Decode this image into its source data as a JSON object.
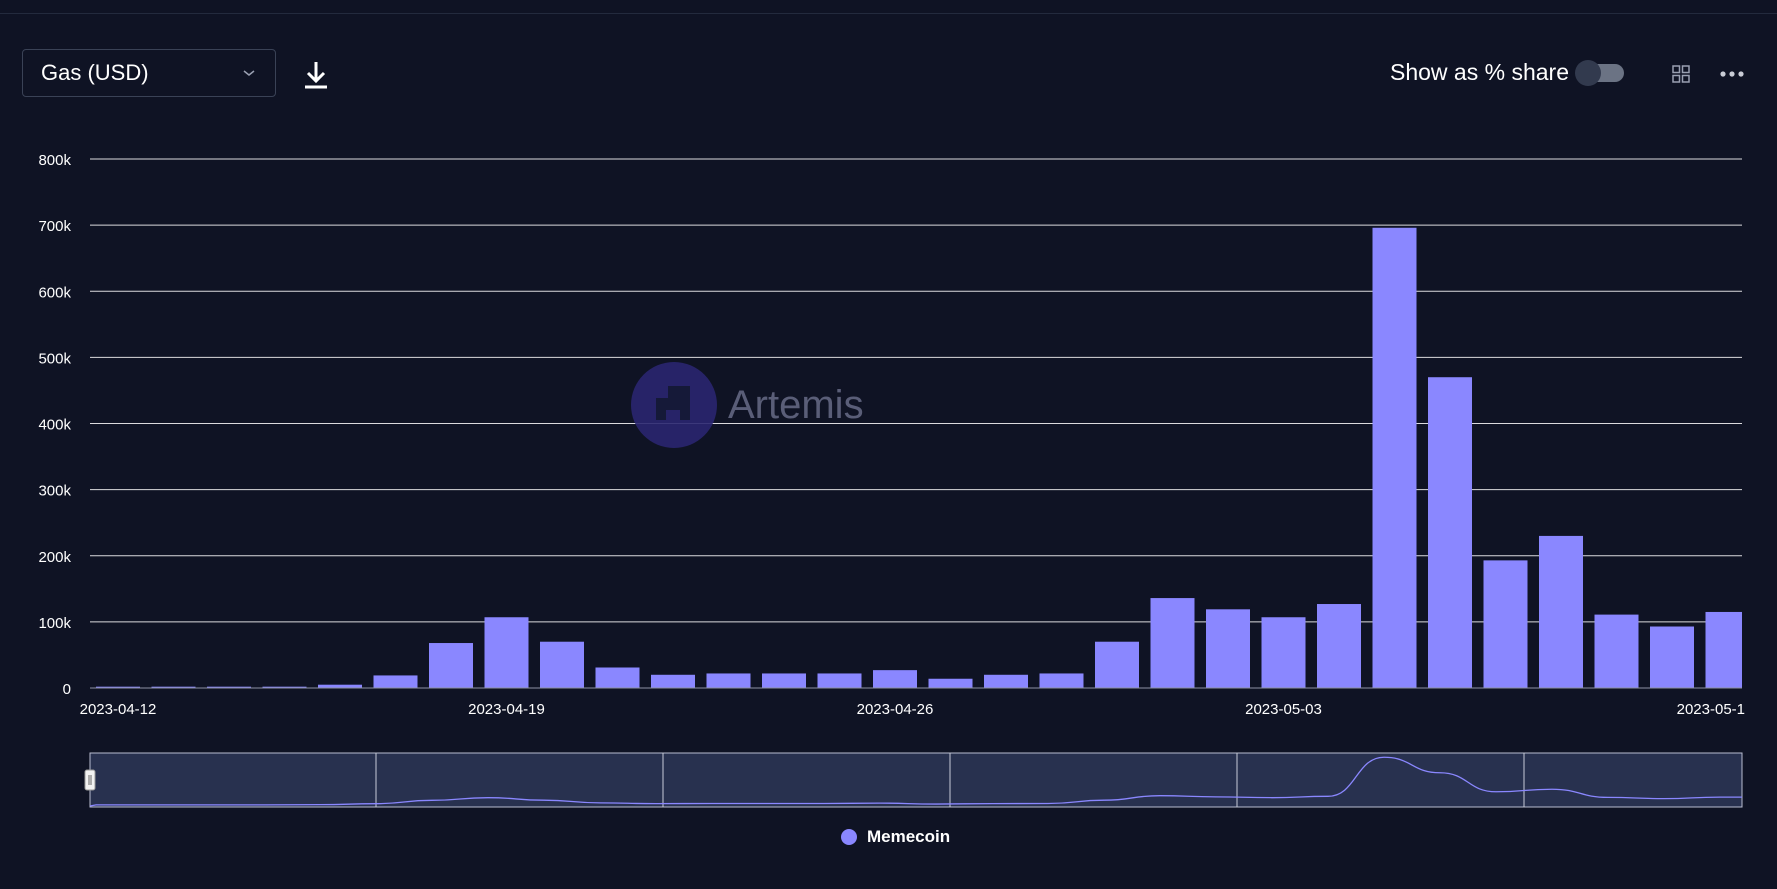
{
  "toolbar": {
    "metric_select": "Gas (USD)",
    "show_share_label": "Show as % share",
    "show_share_enabled": false
  },
  "watermark": {
    "text": "Artemis"
  },
  "colors": {
    "background": "#0f1324",
    "bar": "#8a87ff",
    "grid": "#ffffff",
    "navigator_fill": "#28314f",
    "watermark_circle": "#2a2670"
  },
  "legend": {
    "label": "Memecoin"
  },
  "chart_data": {
    "type": "bar",
    "title": "",
    "xlabel": "",
    "ylabel": "",
    "ylim": [
      0,
      800000
    ],
    "y_ticks": [
      "0",
      "100k",
      "200k",
      "300k",
      "400k",
      "500k",
      "600k",
      "700k",
      "800k"
    ],
    "x_tick_labels": [
      "2023-04-12",
      "2023-04-19",
      "2023-04-26",
      "2023-05-03",
      "2023-05-1"
    ],
    "grid": true,
    "legend_position": "bottom-center",
    "categories": [
      "2023-04-12",
      "2023-04-13",
      "2023-04-14",
      "2023-04-15",
      "2023-04-16",
      "2023-04-17",
      "2023-04-18",
      "2023-04-19",
      "2023-04-20",
      "2023-04-21",
      "2023-04-22",
      "2023-04-23",
      "2023-04-24",
      "2023-04-25",
      "2023-04-26",
      "2023-04-27",
      "2023-04-28",
      "2023-04-29",
      "2023-04-30",
      "2023-05-01",
      "2023-05-02",
      "2023-05-03",
      "2023-05-04",
      "2023-05-05",
      "2023-05-06",
      "2023-05-07",
      "2023-05-08",
      "2023-05-09",
      "2023-05-10",
      "2023-05-11"
    ],
    "series": [
      {
        "name": "Memecoin",
        "values": [
          2000,
          2000,
          2000,
          2000,
          5000,
          19000,
          68000,
          107000,
          70000,
          31000,
          20000,
          22000,
          22000,
          22000,
          27000,
          14000,
          20000,
          22000,
          70000,
          136000,
          119000,
          107000,
          127000,
          696000,
          470000,
          193000,
          230000,
          111000,
          93000,
          115000
        ]
      }
    ]
  }
}
